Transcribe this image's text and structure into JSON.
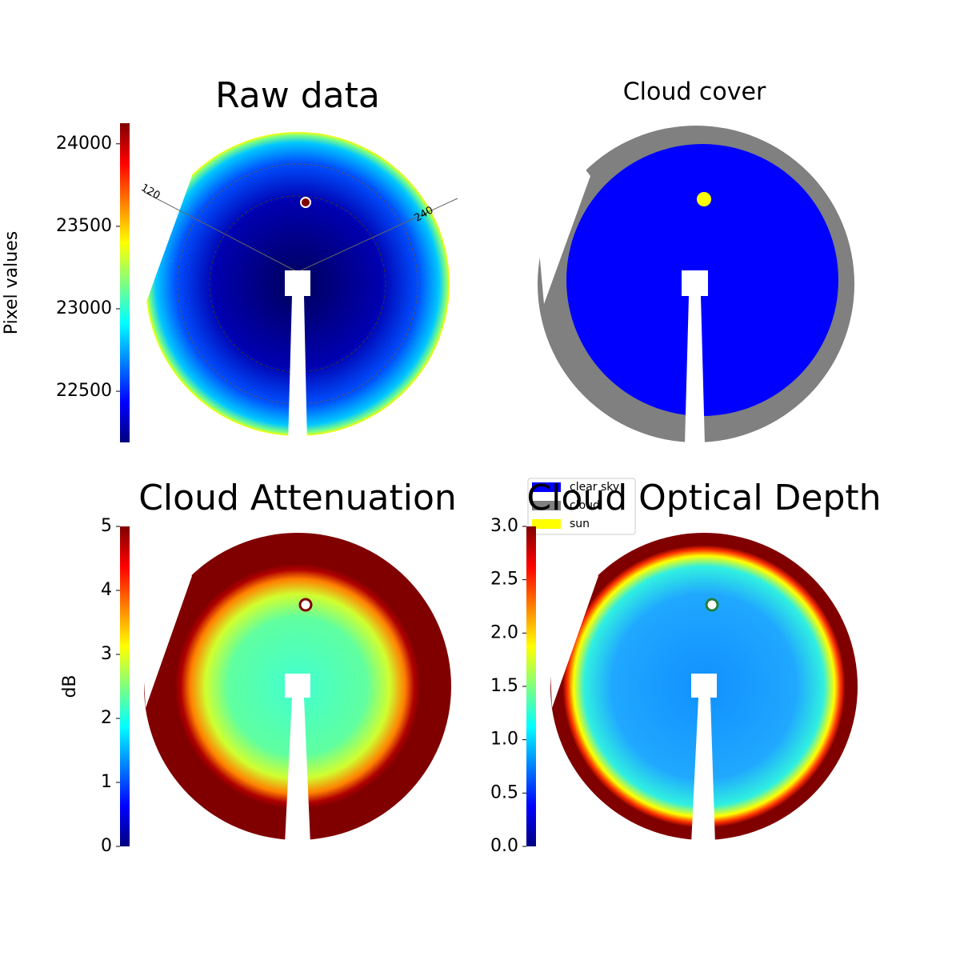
{
  "chart_data": [
    {
      "type": "image",
      "title": "Raw data",
      "colorbar_label": "Pixel values",
      "colormap": "jet",
      "clim": [
        22190,
        24125
      ],
      "ticks": [
        22500,
        23000,
        23500,
        24000
      ],
      "annotations": [
        "120",
        "240"
      ]
    },
    {
      "type": "image",
      "title": "Cloud cover",
      "legend": [
        {
          "name": "clear sky",
          "color": "#0000ff"
        },
        {
          "name": "cloud",
          "color": "#808080"
        },
        {
          "name": "sun",
          "color": "#ffff00"
        }
      ]
    },
    {
      "type": "image",
      "title": "Cloud Attenuation",
      "colorbar_label": "dB",
      "colormap": "jet",
      "clim": [
        0,
        5
      ],
      "ticks": [
        0,
        1,
        2,
        3,
        4,
        5
      ]
    },
    {
      "type": "image",
      "title": "Cloud Optical Depth",
      "colormap": "jet",
      "clim": [
        0,
        3
      ],
      "ticks": [
        {
          "value": 0,
          "label": "0.0"
        },
        0.5,
        {
          "value": 1,
          "label": "1.0"
        },
        1.5,
        {
          "value": 2,
          "label": "2.0"
        },
        2.5,
        {
          "value": 3,
          "label": "3.0"
        }
      ]
    }
  ]
}
